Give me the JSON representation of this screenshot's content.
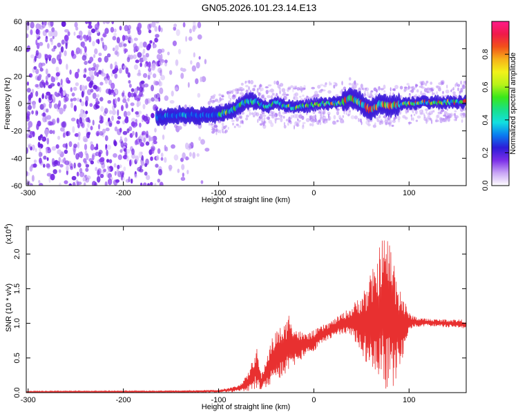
{
  "chart_data": [
    {
      "type": "heatmap",
      "title": "GN05.2026.101.23.14.E13",
      "xlabel": "Height of straight line (km)",
      "ylabel": "Frequency (Hz)",
      "xlim": [
        -302,
        160
      ],
      "ylim": [
        -60,
        60
      ],
      "x_ticks": [
        -300,
        -200,
        -100,
        0,
        100
      ],
      "y_ticks": [
        -60,
        -40,
        -20,
        0,
        20,
        40,
        60
      ],
      "colorbar": {
        "label": "Normalized spectral amplitude",
        "range": [
          0,
          1
        ],
        "ticks": [
          0.0,
          0.2,
          0.4,
          0.6,
          0.8
        ],
        "tick_labels": [
          "0.0",
          "0.2",
          "0.4",
          "0.6",
          "0.8"
        ],
        "colors": [
          "#ffffff",
          "#c9a5f5",
          "#7b2fe8",
          "#2d1bd8",
          "#0a7cf0",
          "#12e0e0",
          "#18e08a",
          "#3ae81a",
          "#b8f21a",
          "#f2f21a",
          "#f7b21a",
          "#f2501a",
          "#f01a4a",
          "#ff1a8a"
        ]
      },
      "ridge": [
        {
          "x": -160,
          "y": -10
        },
        {
          "x": -140,
          "y": -8
        },
        {
          "x": -120,
          "y": -9
        },
        {
          "x": -100,
          "y": -8
        },
        {
          "x": -85,
          "y": -5
        },
        {
          "x": -70,
          "y": 2
        },
        {
          "x": -60,
          "y": 1
        },
        {
          "x": -50,
          "y": -3
        },
        {
          "x": -40,
          "y": 1
        },
        {
          "x": -30,
          "y": -2
        },
        {
          "x": -20,
          "y": -3
        },
        {
          "x": -10,
          "y": -2
        },
        {
          "x": 0,
          "y": -1
        },
        {
          "x": 10,
          "y": 0
        },
        {
          "x": 20,
          "y": 0
        },
        {
          "x": 30,
          "y": 1
        },
        {
          "x": 40,
          "y": 4
        },
        {
          "x": 50,
          "y": 0
        },
        {
          "x": 60,
          "y": -5
        },
        {
          "x": 70,
          "y": 0
        },
        {
          "x": 80,
          "y": -2
        },
        {
          "x": 100,
          "y": 0
        },
        {
          "x": 120,
          "y": 1
        },
        {
          "x": 140,
          "y": 1
        },
        {
          "x": 160,
          "y": 1
        }
      ]
    },
    {
      "type": "line",
      "xlabel": "Height of straight line (km)",
      "ylabel": "SNR (10 * v/v)",
      "multiplier": "(x10",
      "multiplier_exp": "4",
      "multiplier_close": ")",
      "xlim": [
        -302,
        160
      ],
      "ylim": [
        0,
        2.4
      ],
      "x_ticks": [
        -300,
        -200,
        -100,
        0,
        100
      ],
      "y_ticks": [
        0.0,
        0.5,
        1.0,
        1.5,
        2.0
      ],
      "y_tick_labels": [
        "0.0",
        "0.5",
        "1.0",
        "1.5",
        "2.0"
      ],
      "line_color": "#e83030",
      "envelope": [
        {
          "x": -302,
          "lo": 0.0,
          "hi": 0.02
        },
        {
          "x": -150,
          "lo": 0.0,
          "hi": 0.03
        },
        {
          "x": -100,
          "lo": 0.0,
          "hi": 0.04
        },
        {
          "x": -80,
          "lo": 0.01,
          "hi": 0.1
        },
        {
          "x": -70,
          "lo": 0.02,
          "hi": 0.25
        },
        {
          "x": -65,
          "lo": 0.03,
          "hi": 0.45
        },
        {
          "x": -60,
          "lo": 0.05,
          "hi": 0.65
        },
        {
          "x": -55,
          "lo": 0.05,
          "hi": 0.25
        },
        {
          "x": -50,
          "lo": 0.08,
          "hi": 0.5
        },
        {
          "x": -45,
          "lo": 0.1,
          "hi": 0.75
        },
        {
          "x": -40,
          "lo": 0.15,
          "hi": 0.9
        },
        {
          "x": -35,
          "lo": 0.2,
          "hi": 0.95
        },
        {
          "x": -30,
          "lo": 0.25,
          "hi": 1.0
        },
        {
          "x": -25,
          "lo": 0.3,
          "hi": 1.2
        },
        {
          "x": -20,
          "lo": 0.4,
          "hi": 0.95
        },
        {
          "x": -10,
          "lo": 0.5,
          "hi": 0.85
        },
        {
          "x": 0,
          "lo": 0.6,
          "hi": 0.9
        },
        {
          "x": 10,
          "lo": 0.7,
          "hi": 0.98
        },
        {
          "x": 20,
          "lo": 0.8,
          "hi": 1.05
        },
        {
          "x": 30,
          "lo": 0.85,
          "hi": 1.15
        },
        {
          "x": 40,
          "lo": 0.8,
          "hi": 1.25
        },
        {
          "x": 50,
          "lo": 0.6,
          "hi": 1.45
        },
        {
          "x": 55,
          "lo": 0.4,
          "hi": 1.55
        },
        {
          "x": 60,
          "lo": 0.3,
          "hi": 1.75
        },
        {
          "x": 65,
          "lo": 0.2,
          "hi": 1.85
        },
        {
          "x": 70,
          "lo": 0.1,
          "hi": 2.2
        },
        {
          "x": 75,
          "lo": 0.05,
          "hi": 2.3
        },
        {
          "x": 80,
          "lo": 0.05,
          "hi": 2.2
        },
        {
          "x": 85,
          "lo": 0.1,
          "hi": 1.9
        },
        {
          "x": 90,
          "lo": 0.3,
          "hi": 1.6
        },
        {
          "x": 95,
          "lo": 0.6,
          "hi": 1.35
        },
        {
          "x": 100,
          "lo": 0.9,
          "hi": 1.15
        },
        {
          "x": 110,
          "lo": 0.95,
          "hi": 1.08
        },
        {
          "x": 130,
          "lo": 0.95,
          "hi": 1.06
        },
        {
          "x": 150,
          "lo": 0.93,
          "hi": 1.06
        },
        {
          "x": 160,
          "lo": 0.92,
          "hi": 1.05
        }
      ]
    }
  ]
}
